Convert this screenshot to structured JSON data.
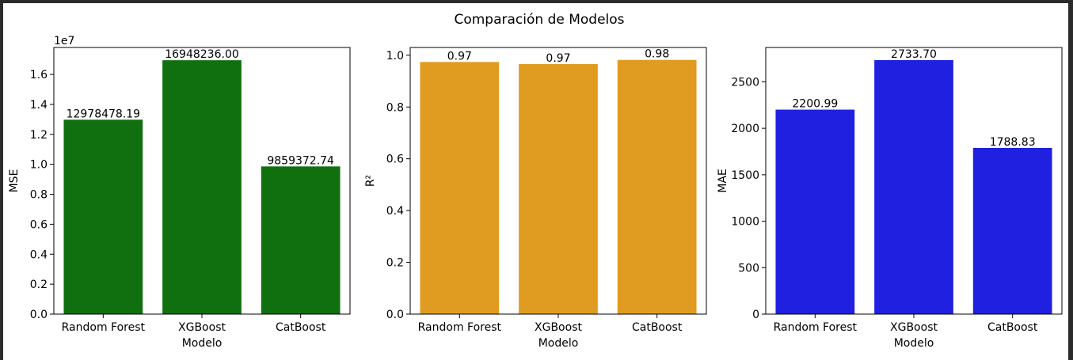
{
  "figure": {
    "title": "Comparación de Modelos"
  },
  "chart_data": [
    {
      "type": "bar",
      "categories": [
        "Random Forest",
        "XGBoost",
        "CatBoost"
      ],
      "values": [
        12978478.19,
        16948236.0,
        9859372.74
      ],
      "value_labels": [
        "12978478.19",
        "16948236.00",
        "9859372.74"
      ],
      "xlabel": "Modelo",
      "ylabel": "MSE",
      "ylim": [
        0,
        17800000
      ],
      "y_offset_text": "1e7",
      "yticks": [
        0,
        2000000,
        4000000,
        6000000,
        8000000,
        10000000,
        12000000,
        14000000,
        16000000
      ],
      "ytick_labels": [
        "0.0",
        "0.2",
        "0.4",
        "0.6",
        "0.8",
        "1.0",
        "1.2",
        "1.4",
        "1.6"
      ],
      "color": "#107010",
      "grid": false
    },
    {
      "type": "bar",
      "categories": [
        "Random Forest",
        "XGBoost",
        "CatBoost"
      ],
      "values": [
        0.974,
        0.966,
        0.982
      ],
      "value_labels": [
        "0.97",
        "0.97",
        "0.98"
      ],
      "xlabel": "Modelo",
      "ylabel": "R²",
      "ylim": [
        0,
        1.03
      ],
      "yticks": [
        0,
        0.2,
        0.4,
        0.6,
        0.8,
        1.0
      ],
      "ytick_labels": [
        "0.0",
        "0.2",
        "0.4",
        "0.6",
        "0.8",
        "1.0"
      ],
      "color": "#e09c20",
      "grid": false
    },
    {
      "type": "bar",
      "categories": [
        "Random Forest",
        "XGBoost",
        "CatBoost"
      ],
      "values": [
        2200.99,
        2733.7,
        1788.83
      ],
      "value_labels": [
        "2200.99",
        "2733.70",
        "1788.83"
      ],
      "xlabel": "Modelo",
      "ylabel": "MAE",
      "ylim": [
        0,
        2870
      ],
      "yticks": [
        0,
        500,
        1000,
        1500,
        2000,
        2500
      ],
      "ytick_labels": [
        "0",
        "500",
        "1000",
        "1500",
        "2000",
        "2500"
      ],
      "color": "#2020e0",
      "grid": false
    }
  ]
}
